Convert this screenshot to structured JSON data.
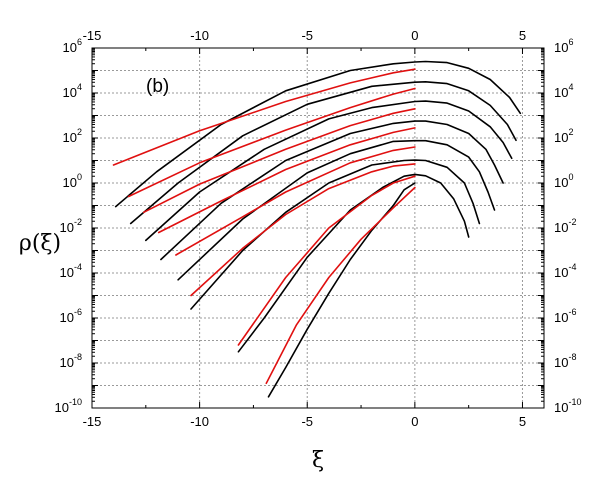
{
  "chart_data": {
    "type": "line",
    "title": "",
    "panel_label": "(b)",
    "xlabel": "ξ",
    "ylabel": "ρ(ξ)",
    "xlim": [
      -15,
      6
    ],
    "ylim_log10": [
      -10,
      6
    ],
    "y_scale": "log",
    "grid": true,
    "x_ticks": [
      -15,
      -10,
      -5,
      0,
      5
    ],
    "x_tick_labels": [
      "-15",
      "-10",
      "-5",
      "0",
      "5"
    ],
    "y_tick_exponents": [
      -10,
      -8,
      -6,
      -4,
      -2,
      0,
      2,
      4,
      6
    ],
    "top_axis_ticks": [
      -15,
      -10,
      -5,
      0,
      5
    ],
    "top_axis_tick_labels": [
      "-15",
      "-10",
      "-5",
      "0",
      "5"
    ],
    "colors": {
      "simulation": "#000000",
      "fit": "#e01010"
    },
    "series": [
      {
        "color": "simulation",
        "points": [
          [
            -13.9,
            -1.05
          ],
          [
            -12,
            0.5
          ],
          [
            -9,
            2.6
          ],
          [
            -6,
            4.1
          ],
          [
            -3,
            5.0
          ],
          [
            -1,
            5.3
          ],
          [
            0,
            5.38
          ],
          [
            0.5,
            5.4
          ],
          [
            1.5,
            5.35
          ],
          [
            2.5,
            5.1
          ],
          [
            3.5,
            4.6
          ],
          [
            4.4,
            3.8
          ],
          [
            4.9,
            3.1
          ]
        ]
      },
      {
        "color": "fit",
        "points": [
          [
            -14.0,
            0.8
          ],
          [
            -10,
            2.32
          ],
          [
            -6,
            3.62
          ],
          [
            -3,
            4.45
          ],
          [
            -1,
            4.9
          ],
          [
            0,
            5.06
          ]
        ]
      },
      {
        "color": "simulation",
        "points": [
          [
            -13.2,
            -1.8
          ],
          [
            -11,
            0
          ],
          [
            -8,
            2.1
          ],
          [
            -5,
            3.5
          ],
          [
            -2,
            4.3
          ],
          [
            0,
            4.48
          ],
          [
            0.5,
            4.5
          ],
          [
            1.5,
            4.42
          ],
          [
            2.5,
            4.1
          ],
          [
            3.5,
            3.45
          ],
          [
            4.3,
            2.6
          ],
          [
            4.7,
            1.9
          ]
        ]
      },
      {
        "color": "fit",
        "points": [
          [
            -13.3,
            -0.6
          ],
          [
            -10,
            0.9
          ],
          [
            -6,
            2.35
          ],
          [
            -3,
            3.35
          ],
          [
            -1,
            3.95
          ],
          [
            0,
            4.2
          ]
        ]
      },
      {
        "color": "simulation",
        "points": [
          [
            -12.5,
            -2.55
          ],
          [
            -10,
            -0.4
          ],
          [
            -7,
            1.5
          ],
          [
            -4,
            2.85
          ],
          [
            -2,
            3.35
          ],
          [
            0,
            3.62
          ],
          [
            0.5,
            3.64
          ],
          [
            1.5,
            3.55
          ],
          [
            2.5,
            3.2
          ],
          [
            3.5,
            2.5
          ],
          [
            4.1,
            1.8
          ],
          [
            4.5,
            1.1
          ]
        ]
      },
      {
        "color": "fit",
        "points": [
          [
            -12.6,
            -1.3
          ],
          [
            -10,
            -0.05
          ],
          [
            -6,
            1.5
          ],
          [
            -3,
            2.55
          ],
          [
            -1,
            3.1
          ],
          [
            0,
            3.3
          ]
        ]
      },
      {
        "color": "simulation",
        "points": [
          [
            -11.8,
            -3.4
          ],
          [
            -9,
            -0.9
          ],
          [
            -6,
            1.0
          ],
          [
            -3,
            2.2
          ],
          [
            -1,
            2.65
          ],
          [
            0,
            2.75
          ],
          [
            0.5,
            2.75
          ],
          [
            1.5,
            2.6
          ],
          [
            2.5,
            2.2
          ],
          [
            3.3,
            1.5
          ],
          [
            3.7,
            0.8
          ],
          [
            4.1,
            0.0
          ]
        ]
      },
      {
        "color": "fit",
        "points": [
          [
            -11.9,
            -2.2
          ],
          [
            -9,
            -0.8
          ],
          [
            -6,
            0.6
          ],
          [
            -3,
            1.7
          ],
          [
            -1,
            2.25
          ],
          [
            0,
            2.45
          ]
        ]
      },
      {
        "color": "simulation",
        "points": [
          [
            -11,
            -4.3
          ],
          [
            -8,
            -1.6
          ],
          [
            -5,
            0.45
          ],
          [
            -3,
            1.3
          ],
          [
            -1,
            1.85
          ],
          [
            0,
            1.88
          ],
          [
            0.5,
            1.88
          ],
          [
            1.5,
            1.7
          ],
          [
            2.5,
            1.15
          ],
          [
            3.0,
            0.5
          ],
          [
            3.4,
            -0.4
          ],
          [
            3.7,
            -1.2
          ]
        ]
      },
      {
        "color": "fit",
        "points": [
          [
            -11.1,
            -3.2
          ],
          [
            -8,
            -1.5
          ],
          [
            -6,
            -0.4
          ],
          [
            -3,
            0.9
          ],
          [
            -1,
            1.45
          ],
          [
            0,
            1.6
          ]
        ]
      },
      {
        "color": "simulation",
        "points": [
          [
            -10.4,
            -5.6
          ],
          [
            -8,
            -3.0
          ],
          [
            -6,
            -1.3
          ],
          [
            -4,
            0.0
          ],
          [
            -2,
            0.8
          ],
          [
            -0.5,
            1.0
          ],
          [
            0,
            1.02
          ],
          [
            0.5,
            1.0
          ],
          [
            1.5,
            0.7
          ],
          [
            2.3,
            0.0
          ],
          [
            2.7,
            -0.9
          ],
          [
            3.0,
            -1.8
          ]
        ]
      },
      {
        "color": "fit",
        "points": [
          [
            -10.4,
            -5.0
          ],
          [
            -8,
            -2.9
          ],
          [
            -6,
            -1.4
          ],
          [
            -4,
            -0.25
          ],
          [
            -2,
            0.5
          ],
          [
            -1,
            0.75
          ],
          [
            0,
            0.85
          ]
        ]
      },
      {
        "color": "simulation",
        "points": [
          [
            -8.2,
            -7.5
          ],
          [
            -7,
            -6.0
          ],
          [
            -5,
            -3.3
          ],
          [
            -3,
            -1.2
          ],
          [
            -1.5,
            -0.2
          ],
          [
            -0.5,
            0.3
          ],
          [
            0,
            0.38
          ],
          [
            0.5,
            0.32
          ],
          [
            1.2,
            0.0
          ],
          [
            1.8,
            -0.7
          ],
          [
            2.3,
            -1.7
          ],
          [
            2.5,
            -2.4
          ]
        ]
      },
      {
        "color": "fit",
        "points": [
          [
            -8.2,
            -7.2
          ],
          [
            -6,
            -4.2
          ],
          [
            -4,
            -2.0
          ],
          [
            -2,
            -0.55
          ],
          [
            -1,
            0.0
          ],
          [
            0,
            0.3
          ]
        ]
      },
      {
        "color": "simulation",
        "points": [
          [
            -6.8,
            -9.5
          ],
          [
            -6,
            -8.2
          ],
          [
            -5,
            -6.5
          ],
          [
            -4,
            -4.9
          ],
          [
            -3,
            -3.4
          ],
          [
            -2,
            -2.1
          ],
          [
            -1,
            -1.0
          ],
          [
            -0.5,
            -0.3
          ],
          [
            0,
            0.0
          ]
        ]
      },
      {
        "color": "fit",
        "points": [
          [
            -6.9,
            -8.9
          ],
          [
            -5.5,
            -6.3
          ],
          [
            -4,
            -4.2
          ],
          [
            -2.5,
            -2.5
          ],
          [
            -1,
            -1.1
          ],
          [
            0,
            -0.2
          ]
        ]
      }
    ]
  }
}
